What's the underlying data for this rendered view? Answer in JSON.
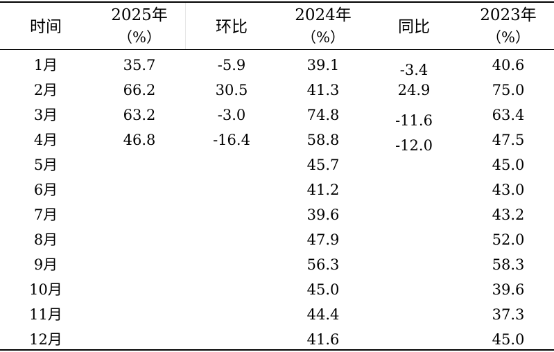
{
  "table": {
    "headers": [
      {
        "line1": "时间",
        "line2": ""
      },
      {
        "line1": "2025年",
        "line2": "（%）"
      },
      {
        "line1": "环比",
        "line2": ""
      },
      {
        "line1": "2024年",
        "line2": "（%）"
      },
      {
        "line1": "同比",
        "line2": ""
      },
      {
        "line1": "2023年",
        "line2": "（%）"
      }
    ],
    "rows": [
      [
        "1月",
        "35.7",
        "-5.9",
        "39.1",
        "-3.4",
        "40.6"
      ],
      [
        "2月",
        "66.2",
        "30.5",
        "41.3",
        "24.9",
        "75.0"
      ],
      [
        "3月",
        "63.2",
        "-3.0",
        "74.8",
        "-11.6",
        "63.4"
      ],
      [
        "4月",
        "46.8",
        "-16.4",
        "58.8",
        "-12.0",
        "47.5"
      ],
      [
        "5月",
        "",
        "",
        "45.7",
        "",
        "45.0"
      ],
      [
        "6月",
        "",
        "",
        "41.2",
        "",
        "43.0"
      ],
      [
        "7月",
        "",
        "",
        "39.6",
        "",
        "43.2"
      ],
      [
        "8月",
        "",
        "",
        "47.9",
        "",
        "52.0"
      ],
      [
        "9月",
        "",
        "",
        "56.3",
        "",
        "58.3"
      ],
      [
        "10月",
        "",
        "",
        "45.0",
        "",
        "39.6"
      ],
      [
        "11月",
        "",
        "",
        "44.4",
        "",
        "37.3"
      ],
      [
        "12月",
        "",
        "",
        "41.6",
        "",
        "45.0"
      ]
    ]
  }
}
